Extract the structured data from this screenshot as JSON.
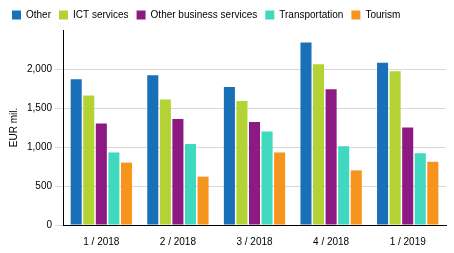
{
  "chart_data": {
    "type": "bar",
    "ylabel": "EUR mil.",
    "categories": [
      "1 / 2018",
      "2 / 2018",
      "3 / 2018",
      "4 / 2018",
      "1 / 2019"
    ],
    "series": [
      {
        "name": "Other",
        "color": "#1770b8",
        "values": [
          1870,
          1920,
          1770,
          2340,
          2080
        ]
      },
      {
        "name": "ICT services",
        "color": "#b3d334",
        "values": [
          1660,
          1610,
          1590,
          2060,
          1970
        ]
      },
      {
        "name": "Other business services",
        "color": "#8d1a83",
        "values": [
          1300,
          1360,
          1320,
          1740,
          1250
        ]
      },
      {
        "name": "Transportation",
        "color": "#40d9bf",
        "values": [
          930,
          1040,
          1200,
          1010,
          920
        ]
      },
      {
        "name": "Tourism",
        "color": "#f7941d",
        "values": [
          800,
          620,
          930,
          700,
          810
        ]
      }
    ],
    "ylim": [
      0,
      2500
    ],
    "yticks": [
      0,
      500,
      {
        "value": 1000,
        "label": "1,000"
      },
      {
        "value": 1500,
        "label": "1,500"
      },
      {
        "value": 2000,
        "label": "2,000"
      }
    ],
    "grid": true,
    "legend": "top"
  }
}
